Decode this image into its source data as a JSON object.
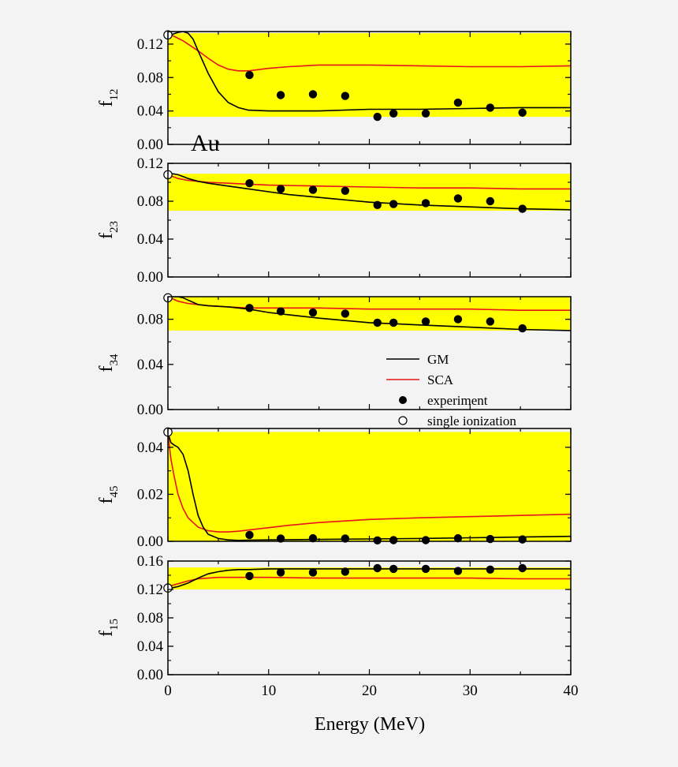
{
  "chart_data": {
    "type": "line",
    "xlabel": "Energy (MeV)",
    "xlim": [
      0,
      40
    ],
    "xticks": [
      "0",
      "10",
      "20",
      "30",
      "40"
    ],
    "annotation": "Au",
    "colors": {
      "GM": "#000000",
      "SCA": "#e8141b",
      "band": "#ffff00",
      "background": "#f3f3f3"
    },
    "legend": {
      "placement": "right, third panel",
      "entries": [
        {
          "label": "GM",
          "marker": "line",
          "color": "#000000"
        },
        {
          "label": "SCA",
          "marker": "line",
          "color": "#e8141b"
        },
        {
          "label": "experiment",
          "marker": "filled-circle",
          "color": "#000000"
        },
        {
          "label": "single ionization",
          "marker": "open-circle",
          "color": "#000000"
        }
      ]
    },
    "panels": [
      {
        "ylabel": "f",
        "ysub": "12",
        "ylim": [
          0,
          0.135
        ],
        "yticks": [
          "0.00",
          "0.04",
          "0.08",
          "0.12"
        ],
        "band": [
          0.033,
          0.133
        ],
        "gm": {
          "x": [
            0,
            0.5,
            1,
            1.5,
            2,
            2.5,
            3,
            4,
            5,
            6,
            7,
            8,
            10,
            12,
            15,
            20,
            25,
            30,
            35,
            40
          ],
          "y": [
            0.129,
            0.132,
            0.134,
            0.135,
            0.133,
            0.126,
            0.112,
            0.085,
            0.063,
            0.05,
            0.044,
            0.041,
            0.04,
            0.04,
            0.04,
            0.042,
            0.042,
            0.043,
            0.044,
            0.044
          ]
        },
        "sca": {
          "x": [
            0,
            0.5,
            1,
            1.5,
            2,
            3,
            4,
            5,
            6,
            7,
            8,
            10,
            12,
            15,
            20,
            25,
            30,
            35,
            40
          ],
          "y": [
            0.13,
            0.13,
            0.127,
            0.124,
            0.12,
            0.112,
            0.103,
            0.095,
            0.09,
            0.088,
            0.088,
            0.091,
            0.093,
            0.095,
            0.095,
            0.094,
            0.093,
            0.093,
            0.094
          ]
        },
        "experiment": {
          "x": [
            8.1,
            11.2,
            14.4,
            17.6,
            20.8,
            22.4,
            25.6,
            28.8,
            32,
            35.2
          ],
          "y": [
            0.083,
            0.059,
            0.06,
            0.058,
            0.033,
            0.037,
            0.037,
            0.05,
            0.044,
            0.038
          ]
        },
        "single_ionization": {
          "x": [
            0
          ],
          "y": [
            0.131
          ]
        }
      },
      {
        "ylabel": "f",
        "ysub": "23",
        "ylim": [
          0,
          0.12
        ],
        "yticks": [
          "0.00",
          "0.04",
          "0.08",
          "0.12"
        ],
        "band": [
          0.07,
          0.109
        ],
        "gm": {
          "x": [
            0,
            0.5,
            1,
            1.5,
            2,
            3,
            4,
            6,
            8,
            10,
            12,
            15,
            20,
            25,
            30,
            35,
            40
          ],
          "y": [
            0.107,
            0.109,
            0.108,
            0.106,
            0.104,
            0.101,
            0.099,
            0.096,
            0.093,
            0.09,
            0.087,
            0.084,
            0.079,
            0.076,
            0.074,
            0.072,
            0.071
          ]
        },
        "sca": {
          "x": [
            0,
            0.5,
            1,
            2,
            3,
            4,
            6,
            8,
            10,
            15,
            20,
            25,
            30,
            35,
            40
          ],
          "y": [
            0.107,
            0.106,
            0.104,
            0.102,
            0.101,
            0.1,
            0.099,
            0.098,
            0.097,
            0.096,
            0.095,
            0.094,
            0.094,
            0.093,
            0.093
          ]
        },
        "experiment": {
          "x": [
            8.1,
            11.2,
            14.4,
            17.6,
            20.8,
            22.4,
            25.6,
            28.8,
            32,
            35.2
          ],
          "y": [
            0.099,
            0.093,
            0.092,
            0.091,
            0.076,
            0.077,
            0.078,
            0.083,
            0.08,
            0.072
          ]
        },
        "single_ionization": {
          "x": [
            0
          ],
          "y": [
            0.108
          ]
        }
      },
      {
        "ylabel": "f",
        "ysub": "34",
        "ylim": [
          0,
          0.1
        ],
        "yticks": [
          "0.00",
          "0.04",
          "0.08"
        ],
        "band": [
          0.07,
          0.101
        ],
        "gm": {
          "x": [
            0,
            0.5,
            1,
            1.5,
            2,
            3,
            4,
            6,
            8,
            10,
            12,
            15,
            20,
            25,
            30,
            35,
            40
          ],
          "y": [
            0.098,
            0.1,
            0.1,
            0.099,
            0.097,
            0.093,
            0.092,
            0.091,
            0.089,
            0.086,
            0.084,
            0.081,
            0.077,
            0.075,
            0.073,
            0.071,
            0.07
          ]
        },
        "sca": {
          "x": [
            0,
            0.5,
            1,
            2,
            3,
            4,
            6,
            8,
            10,
            15,
            20,
            25,
            30,
            35,
            40
          ],
          "y": [
            0.1,
            0.098,
            0.096,
            0.094,
            0.093,
            0.092,
            0.091,
            0.09,
            0.09,
            0.09,
            0.089,
            0.089,
            0.089,
            0.088,
            0.088
          ]
        },
        "experiment": {
          "x": [
            8.1,
            11.2,
            14.4,
            17.6,
            20.8,
            22.4,
            25.6,
            28.8,
            32,
            35.2
          ],
          "y": [
            0.09,
            0.087,
            0.086,
            0.085,
            0.077,
            0.077,
            0.078,
            0.08,
            0.078,
            0.072
          ]
        },
        "single_ionization": {
          "x": [
            0
          ],
          "y": [
            0.099
          ]
        }
      },
      {
        "ylabel": "f",
        "ysub": "45",
        "ylim": [
          0,
          0.048
        ],
        "yticks": [
          "0.00",
          "0.02",
          "0.04"
        ],
        "band": [
          0.0,
          0.0465
        ],
        "gm": {
          "x": [
            0,
            0.3,
            0.6,
            1,
            1.5,
            2,
            2.5,
            3,
            3.5,
            4,
            5,
            6,
            7,
            8,
            10,
            15,
            20,
            25,
            30,
            35,
            40
          ],
          "y": [
            0.046,
            0.042,
            0.041,
            0.04,
            0.037,
            0.03,
            0.02,
            0.011,
            0.006,
            0.003,
            0.0012,
            0.0006,
            0.0004,
            0.0005,
            0.0006,
            0.0008,
            0.001,
            0.0012,
            0.0015,
            0.0018,
            0.0021
          ]
        },
        "sca": {
          "x": [
            0,
            0.3,
            0.6,
            1,
            1.5,
            2,
            3,
            4,
            5,
            6,
            7,
            8,
            10,
            12,
            15,
            20,
            25,
            30,
            35,
            40
          ],
          "y": [
            0.046,
            0.035,
            0.028,
            0.02,
            0.014,
            0.01,
            0.006,
            0.0045,
            0.004,
            0.004,
            0.0043,
            0.0048,
            0.0058,
            0.0068,
            0.008,
            0.0093,
            0.01,
            0.0105,
            0.011,
            0.0115
          ]
        },
        "experiment": {
          "x": [
            8.1,
            11.2,
            14.4,
            17.6,
            20.8,
            22.4,
            25.6,
            28.8,
            32,
            35.2
          ],
          "y": [
            0.0027,
            0.0012,
            0.0013,
            0.0012,
            0.0004,
            0.0005,
            0.0005,
            0.0013,
            0.001,
            0.0008
          ]
        },
        "single_ionization": {
          "x": [
            0
          ],
          "y": [
            0.0465
          ]
        }
      },
      {
        "ylabel": "f",
        "ysub": "15",
        "ylim": [
          0,
          0.16
        ],
        "yticks": [
          "0.00",
          "0.04",
          "0.08",
          "0.12",
          "0.16"
        ],
        "band": [
          0.12,
          0.151
        ],
        "gm": {
          "x": [
            0,
            1,
            2,
            3,
            4,
            5,
            6,
            7,
            8,
            10,
            12,
            15,
            20,
            25,
            30,
            35,
            40
          ],
          "y": [
            0.121,
            0.124,
            0.129,
            0.136,
            0.142,
            0.145,
            0.147,
            0.148,
            0.148,
            0.149,
            0.149,
            0.149,
            0.149,
            0.149,
            0.149,
            0.149,
            0.149
          ]
        },
        "sca": {
          "x": [
            0,
            1,
            2,
            3,
            4,
            5,
            6,
            7,
            8,
            10,
            15,
            20,
            25,
            30,
            35,
            40
          ],
          "y": [
            0.124,
            0.128,
            0.132,
            0.135,
            0.136,
            0.137,
            0.137,
            0.137,
            0.137,
            0.137,
            0.136,
            0.136,
            0.136,
            0.136,
            0.135,
            0.135
          ]
        },
        "experiment": {
          "x": [
            8.1,
            11.2,
            14.4,
            17.6,
            20.8,
            22.4,
            25.6,
            28.8,
            32,
            35.2
          ],
          "y": [
            0.139,
            0.144,
            0.144,
            0.145,
            0.15,
            0.149,
            0.149,
            0.146,
            0.148,
            0.15
          ]
        },
        "single_ionization": {
          "x": [
            0
          ],
          "y": [
            0.122
          ]
        }
      }
    ]
  }
}
